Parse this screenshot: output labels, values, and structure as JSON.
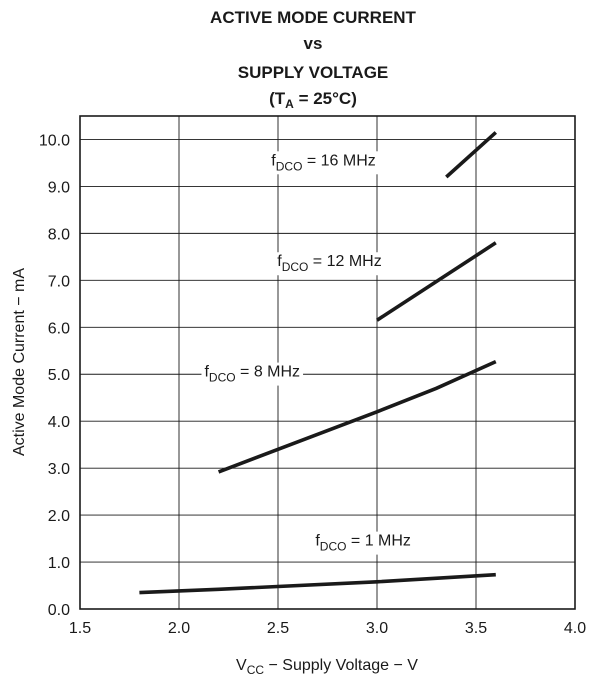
{
  "chart_data": {
    "type": "line",
    "title_lines": [
      "ACTIVE MODE CURRENT",
      "vs",
      "SUPPLY VOLTAGE"
    ],
    "condition": {
      "prefix": "(T",
      "sub": "A",
      "suffix": " = 25°C)"
    },
    "xlabel": {
      "main": "V",
      "sub": "CC",
      "rest": " − Supply Voltage − V"
    },
    "ylabel": "Active Mode Current − mA",
    "xlim": [
      1.5,
      4.0
    ],
    "ylim": [
      0.0,
      10.5
    ],
    "x_ticks": [
      1.5,
      2.0,
      2.5,
      3.0,
      3.5,
      4.0
    ],
    "x_tick_labels": [
      "1.5",
      "2.0",
      "2.5",
      "3.0",
      "3.5",
      "4.0"
    ],
    "y_ticks": [
      0,
      1,
      2,
      3,
      4,
      5,
      6,
      7,
      8,
      9,
      10
    ],
    "y_tick_labels": [
      "0.0",
      "1.0",
      "2.0",
      "3.0",
      "4.0",
      "5.0",
      "6.0",
      "7.0",
      "8.0",
      "9.0",
      "10.0"
    ],
    "grid": true,
    "series": [
      {
        "name": "fDCO = 1 MHz",
        "label_parts": [
          "f",
          "DCO",
          " = 1 MHz"
        ],
        "x": [
          1.8,
          2.2,
          3.0,
          3.6
        ],
        "y": [
          0.35,
          0.42,
          0.58,
          0.73
        ]
      },
      {
        "name": "fDCO = 8 MHz",
        "label_parts": [
          "f",
          "DCO",
          " = 8 MHz"
        ],
        "x": [
          2.2,
          3.0,
          3.3,
          3.6
        ],
        "y": [
          2.92,
          4.2,
          4.7,
          5.27
        ]
      },
      {
        "name": "fDCO = 12 MHz",
        "label_parts": [
          "f",
          "DCO",
          " = 12 MHz"
        ],
        "x": [
          3.0,
          3.6
        ],
        "y": [
          6.15,
          7.8
        ]
      },
      {
        "name": "fDCO = 16 MHz",
        "label_parts": [
          "f",
          "DCO",
          " = 16 MHz"
        ],
        "x": [
          3.35,
          3.6
        ],
        "y": [
          9.2,
          10.15
        ]
      }
    ]
  }
}
